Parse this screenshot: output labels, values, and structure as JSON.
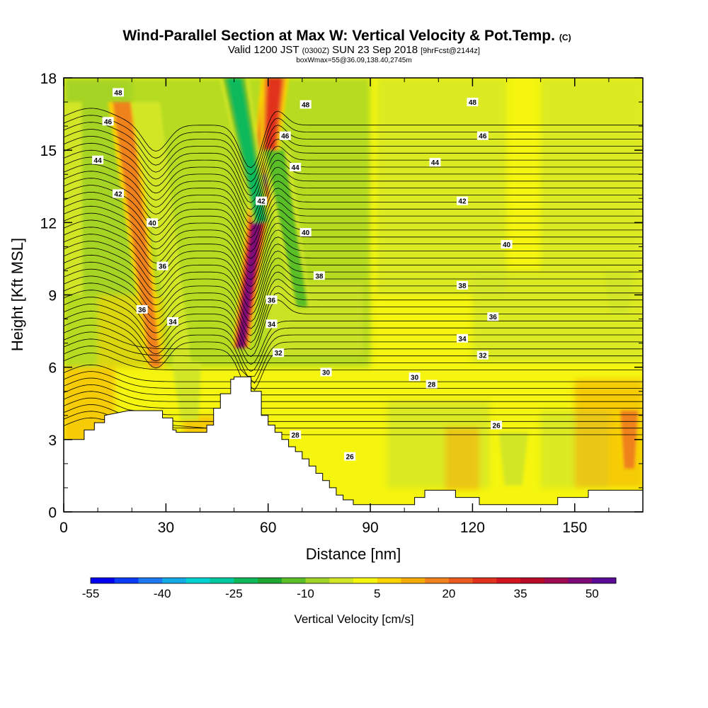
{
  "header": {
    "title": "Wind-Parallel Section at Max W: Vertical Velocity & Pot.Temp.",
    "title_mark": "(C)",
    "subtitle_main_a": "Valid 1200 JST",
    "subtitle_zulu": "(0300Z)",
    "subtitle_main_b": "SUN 23 Sep 2018",
    "subtitle_fcst": "[9hrFcst@2144z]",
    "subtitle2": "boxWmax=55@36.09,138.40,2745m"
  },
  "chart_data": {
    "type": "heatmap",
    "xlabel": "Distance [nm]",
    "ylabel": "Height [Kft MSL]",
    "xlim": [
      0,
      170
    ],
    "ylim": [
      0,
      18
    ],
    "x_ticks": [
      0,
      30,
      60,
      90,
      120,
      150
    ],
    "y_ticks": [
      0,
      3,
      6,
      9,
      12,
      15,
      18
    ],
    "grid": false,
    "colorbar": {
      "title": "Vertical Velocity [cm/s]",
      "tick_labels": [
        "-55",
        "-40",
        "-25",
        "-10",
        "5",
        "20",
        "35",
        "50"
      ],
      "colors": [
        "#0000f0",
        "#0b3cf5",
        "#1e78f0",
        "#14aae6",
        "#00d2d2",
        "#00c8a0",
        "#0fb95a",
        "#1ea532",
        "#5abe28",
        "#a0d228",
        "#d2e628",
        "#f5f50f",
        "#fad200",
        "#f5aa0a",
        "#f0821e",
        "#eb5a1e",
        "#e1321e",
        "#d2141e",
        "#b90a28",
        "#a00a50",
        "#7d0a78",
        "#5a0a96"
      ]
    },
    "terrain_profile": {
      "distance_nm": [
        0,
        6,
        6,
        9,
        9,
        12,
        12,
        19,
        29,
        29,
        32,
        32,
        33,
        33,
        42,
        42,
        44,
        44,
        46,
        46,
        49,
        49,
        50,
        50,
        55,
        55,
        58,
        58,
        60,
        60,
        62,
        62,
        64,
        64,
        66,
        66,
        68,
        68,
        70,
        70,
        72,
        72,
        74,
        74,
        76,
        76,
        78,
        78,
        80,
        80,
        82,
        82,
        85,
        85,
        88,
        88,
        103,
        103,
        106,
        106,
        108,
        108,
        115,
        115,
        120,
        120,
        122,
        122,
        126,
        126,
        130,
        130,
        132,
        132,
        134,
        134,
        145,
        145,
        154,
        154,
        170
      ],
      "height_kft": [
        3.0,
        3.0,
        3.4,
        3.4,
        3.7,
        3.7,
        4.0,
        4.2,
        4.2,
        3.9,
        3.9,
        3.4,
        3.4,
        3.3,
        3.3,
        3.6,
        3.6,
        4.3,
        4.3,
        4.9,
        4.9,
        5.5,
        5.5,
        5.6,
        5.6,
        5.0,
        5.0,
        4.0,
        4.0,
        3.6,
        3.6,
        3.3,
        3.3,
        3.0,
        3.0,
        2.7,
        2.7,
        2.5,
        2.5,
        2.2,
        2.2,
        1.9,
        1.9,
        1.6,
        1.6,
        1.3,
        1.3,
        1.0,
        1.0,
        0.7,
        0.7,
        0.5,
        0.5,
        0.3,
        0.3,
        0.3,
        0.3,
        0.6,
        0.6,
        0.9,
        0.9,
        0.9,
        0.9,
        0.6,
        0.6,
        0.6,
        0.6,
        0.3,
        0.3,
        0.3,
        0.3,
        0.3,
        0.3,
        0.3,
        0.3,
        0.3,
        0.3,
        0.6,
        0.6,
        0.9,
        0.9
      ],
      "note_hidden": ""
    },
    "contour_labels": [
      {
        "value": "48",
        "x": 16,
        "y": 17.4
      },
      {
        "value": "46",
        "x": 13,
        "y": 16.2
      },
      {
        "value": "44",
        "x": 10,
        "y": 14.6
      },
      {
        "value": "42",
        "x": 16,
        "y": 13.2
      },
      {
        "value": "40",
        "x": 26,
        "y": 12.0
      },
      {
        "value": "36",
        "x": 29,
        "y": 10.2
      },
      {
        "value": "36",
        "x": 23,
        "y": 8.4
      },
      {
        "value": "34",
        "x": 32,
        "y": 7.9
      },
      {
        "value": "48",
        "x": 71,
        "y": 16.9
      },
      {
        "value": "46",
        "x": 65,
        "y": 15.6
      },
      {
        "value": "44",
        "x": 68,
        "y": 14.3
      },
      {
        "value": "42",
        "x": 58,
        "y": 12.9
      },
      {
        "value": "40",
        "x": 71,
        "y": 11.6
      },
      {
        "value": "38",
        "x": 75,
        "y": 9.8
      },
      {
        "value": "36",
        "x": 61,
        "y": 8.8
      },
      {
        "value": "34",
        "x": 61,
        "y": 7.8
      },
      {
        "value": "32",
        "x": 63,
        "y": 6.6
      },
      {
        "value": "30",
        "x": 77,
        "y": 5.8
      },
      {
        "value": "28",
        "x": 68,
        "y": 3.2
      },
      {
        "value": "26",
        "x": 84,
        "y": 2.3
      },
      {
        "value": "48",
        "x": 120,
        "y": 17.0
      },
      {
        "value": "46",
        "x": 123,
        "y": 15.6
      },
      {
        "value": "44",
        "x": 109,
        "y": 14.5
      },
      {
        "value": "42",
        "x": 117,
        "y": 12.9
      },
      {
        "value": "40",
        "x": 130,
        "y": 11.1
      },
      {
        "value": "38",
        "x": 117,
        "y": 9.4
      },
      {
        "value": "36",
        "x": 126,
        "y": 8.1
      },
      {
        "value": "34",
        "x": 117,
        "y": 7.2
      },
      {
        "value": "32",
        "x": 123,
        "y": 6.5
      },
      {
        "value": "30",
        "x": 103,
        "y": 5.6
      },
      {
        "value": "28",
        "x": 108,
        "y": 5.3
      },
      {
        "value": "26",
        "x": 127,
        "y": 3.6
      }
    ],
    "features": [
      {
        "kind": "updraft",
        "x_bottom": 52,
        "x_top": 62,
        "y_bottom": 6.8,
        "y_top": 18,
        "w_cm_s": 45
      },
      {
        "kind": "updraft",
        "x_bottom": 27,
        "x_top": 17,
        "y_bottom": 6.0,
        "y_top": 17,
        "w_cm_s": 22
      },
      {
        "kind": "updraft",
        "x_bottom": 60,
        "x_top": 62,
        "y_bottom": 14,
        "y_top": 18,
        "w_cm_s": 30
      },
      {
        "kind": "downdraft",
        "x_bottom": 58,
        "x_top": 50,
        "y_bottom": 12,
        "y_top": 18,
        "w_cm_s": -30
      },
      {
        "kind": "downdraft",
        "x_bottom": 35,
        "x_top": 24,
        "y_bottom": 6.0,
        "y_top": 17,
        "w_cm_s": -14
      },
      {
        "kind": "downdraft",
        "x_bottom": 70,
        "x_top": 62,
        "y_bottom": 8.5,
        "y_top": 15,
        "w_cm_s": -18
      },
      {
        "kind": "downdraft",
        "x_bottom": 3,
        "x_top": 1,
        "y_bottom": 9,
        "y_top": 17,
        "w_cm_s": -12
      },
      {
        "kind": "downdraft",
        "x_bottom": 37,
        "x_top": 36,
        "y_bottom": 3.8,
        "y_top": 6.2,
        "w_cm_s": -14
      },
      {
        "kind": "downdraft",
        "x_bottom": 132,
        "x_top": 132,
        "y_bottom": 1.1,
        "y_top": 3.3,
        "w_cm_s": -10
      },
      {
        "kind": "downdraft",
        "x_bottom": 163,
        "x_top": 163,
        "y_bottom": 8.2,
        "y_top": 10,
        "w_cm_s": -8
      },
      {
        "kind": "updraft",
        "x_bottom": 166,
        "x_top": 166,
        "y_bottom": 1.8,
        "y_top": 4.2,
        "w_cm_s": 15
      }
    ]
  }
}
